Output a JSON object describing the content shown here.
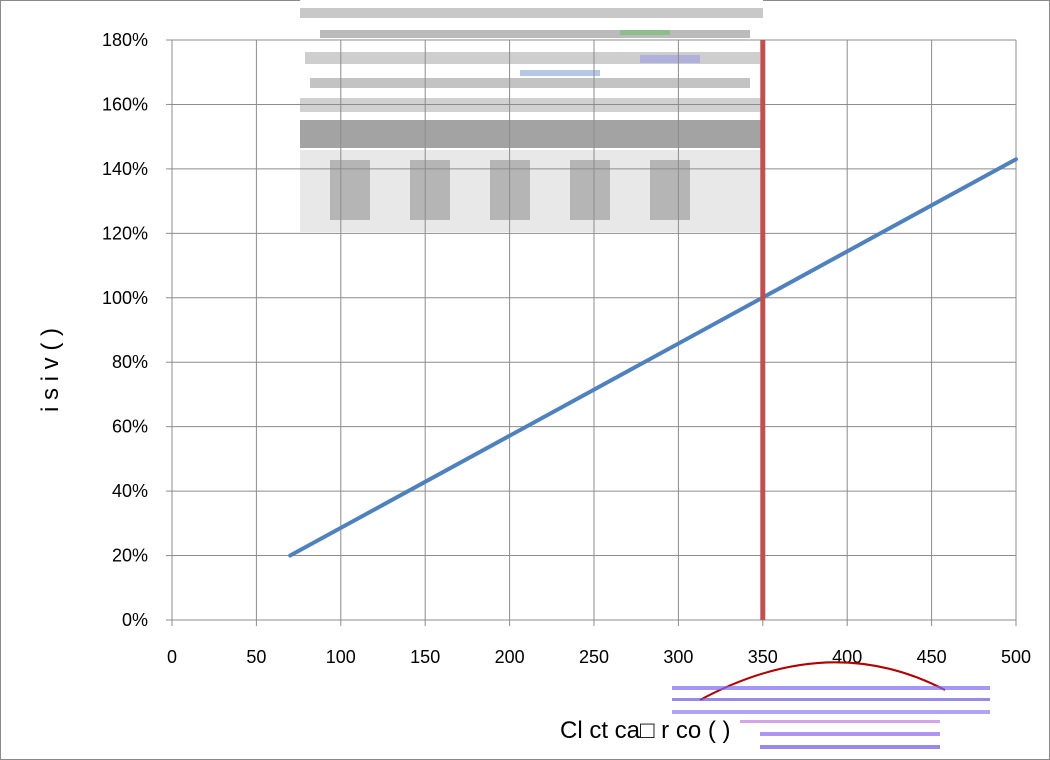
{
  "chart_data": {
    "type": "line",
    "title": "",
    "xlabel": "Cl ct  ca□ r co    (        )",
    "ylabel": "i   s  i         v (   )",
    "xlim": [
      0,
      500
    ],
    "ylim": [
      0,
      1.8
    ],
    "x_ticks": [
      0,
      50,
      100,
      150,
      200,
      250,
      300,
      350,
      400,
      450,
      500
    ],
    "y_ticks": [
      0,
      0.2,
      0.4,
      0.6,
      0.8,
      1.0,
      1.2,
      1.4,
      1.6,
      1.8
    ],
    "y_tick_labels": [
      "0%",
      "20%",
      "40%",
      "60%",
      "80%",
      "100%",
      "120%",
      "140%",
      "160%",
      "180%"
    ],
    "grid": true,
    "series": [
      {
        "x": [
          70,
          500
        ],
        "y": [
          0.2,
          1.43
        ],
        "color": "#4f81bd"
      }
    ],
    "reference_lines": [
      {
        "orientation": "vertical",
        "x": 350,
        "color": "#c0504d"
      }
    ]
  }
}
